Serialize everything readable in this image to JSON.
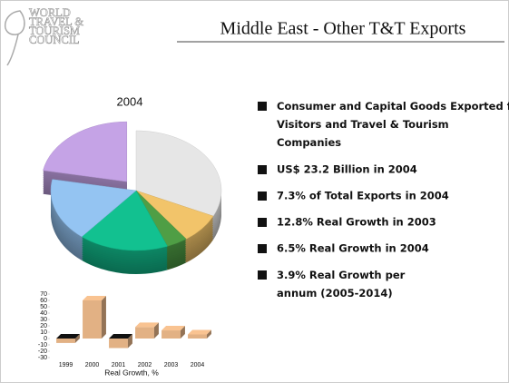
{
  "header": {
    "title": "Middle East - Other T&T Exports",
    "logo": [
      "WORLD",
      "TRAVEL &",
      "TOURISM",
      "COUNCIL"
    ]
  },
  "bullets": [
    "Consumer and Capital Goods Exported for Visitors and Travel & Tourism Companies",
    "US$ 23.2 Billion in 2004",
    "7.3% of Total Exports in 2004",
    "12.8% Real Growth in 2003",
    "6.5% Real Growth in 2004",
    "3.9% Real Growth per annum (2005-2014)"
  ],
  "chart_data": [
    {
      "type": "pie",
      "title": "2004",
      "values": [
        32,
        8,
        4,
        17,
        17,
        22
      ],
      "colors": [
        "#e6e6e6",
        "#f2c46a",
        "#4f9e45",
        "#12c190",
        "#94c4f2",
        "#c5a3e6"
      ],
      "exploded": [
        false,
        false,
        false,
        false,
        false,
        true
      ]
    },
    {
      "type": "bar",
      "categories": [
        "1999",
        "2000",
        "2001",
        "2002",
        "2003",
        "2004"
      ],
      "values": [
        -7,
        60,
        -15,
        18,
        12.8,
        6.5
      ],
      "color": "#e2b184",
      "xlabel": "Real Growth, %",
      "ylim": [
        -30,
        70
      ],
      "yticks": [
        -30,
        -20,
        -10,
        0,
        10,
        20,
        30,
        40,
        50,
        60,
        70
      ]
    }
  ]
}
